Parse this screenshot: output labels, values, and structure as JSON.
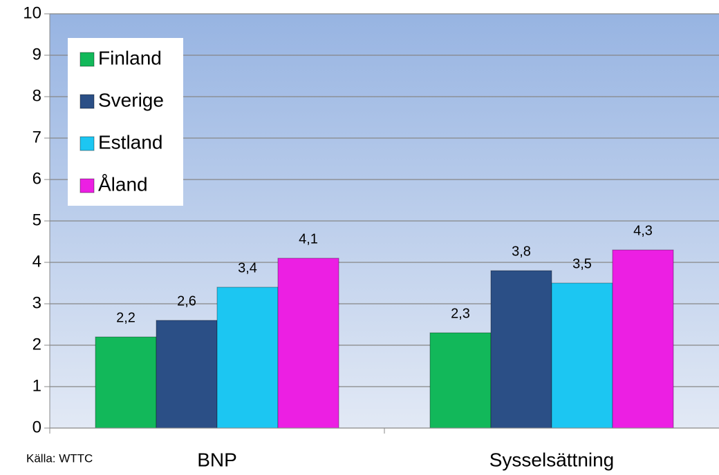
{
  "chart_data": {
    "type": "bar",
    "categories": [
      "BNP",
      "Sysselsättning"
    ],
    "series": [
      {
        "name": "Finland",
        "color": "#12b85a",
        "values": [
          2.2,
          2.3
        ],
        "value_labels": [
          "2,2",
          "2,3"
        ]
      },
      {
        "name": "Sverige",
        "color": "#2b4f86",
        "values": [
          2.6,
          3.8
        ],
        "value_labels": [
          "2,6",
          "3,8"
        ]
      },
      {
        "name": "Estland",
        "color": "#1cc6f2",
        "values": [
          3.4,
          3.5
        ],
        "value_labels": [
          "3,4",
          "3,5"
        ]
      },
      {
        "name": "Åland",
        "color": "#ec1fe3",
        "values": [
          4.1,
          4.3
        ],
        "value_labels": [
          "4,1",
          "4,3"
        ]
      }
    ],
    "ylim": [
      0,
      10
    ],
    "yticks": [
      0,
      1,
      2,
      3,
      4,
      5,
      6,
      7,
      8,
      9,
      10
    ],
    "grid": true,
    "legend": "top-left",
    "source": "Källa: WTTC"
  }
}
